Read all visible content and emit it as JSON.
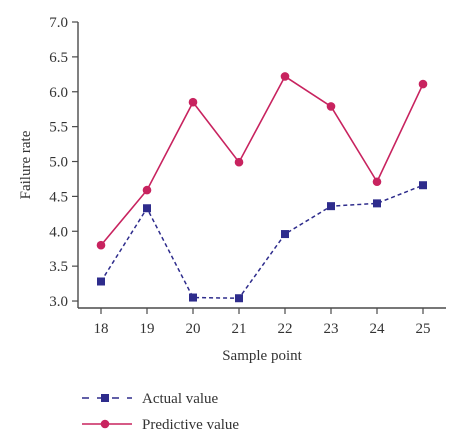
{
  "chart_data": {
    "type": "line",
    "x": [
      18,
      19,
      20,
      21,
      22,
      23,
      24,
      25
    ],
    "xticks": [
      "18",
      "19",
      "20",
      "21",
      "22",
      "23",
      "24",
      "25"
    ],
    "yticks": [
      "3.0",
      "3.5",
      "4.0",
      "4.5",
      "5.0",
      "5.5",
      "6.0",
      "6.5",
      "7.0"
    ],
    "xlabel": "Sample point",
    "ylabel": "Failure rate",
    "xlim": [
      17.5,
      25.5
    ],
    "ylim": [
      2.9,
      7.0
    ],
    "grid": false,
    "legend_position": "bottom-left",
    "series": [
      {
        "name": "Actual value",
        "values": [
          3.28,
          4.33,
          3.05,
          3.04,
          3.96,
          4.36,
          4.4,
          4.66
        ],
        "color": "#2e2c8c",
        "line_style": "dashed",
        "marker": "square"
      },
      {
        "name": "Predictive value",
        "values": [
          3.8,
          4.59,
          5.85,
          4.99,
          6.22,
          5.79,
          4.71,
          6.11
        ],
        "color": "#c8235f",
        "line_style": "solid",
        "marker": "circle"
      }
    ]
  }
}
